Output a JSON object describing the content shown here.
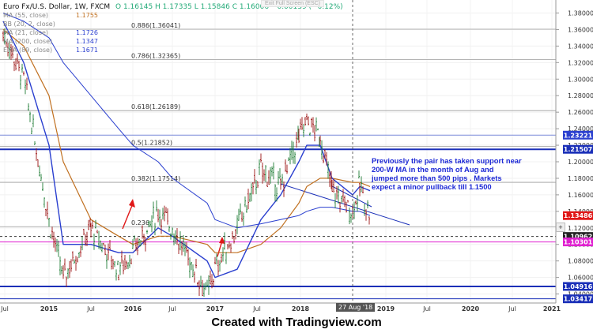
{
  "header": {
    "symbol": "Euro Fx/U.S. Dollar, 1W, FXCM",
    "ohlc": "O 1.16145  H 1.17335  L 1.15846  C 1.16006  −0.00139 (−0.12%)",
    "exit_fullscreen": "Exit Full Screen (ESC)"
  },
  "legend": [
    {
      "label": "MA (55, close)",
      "value": "1.1755",
      "color": "#c07020"
    },
    {
      "label": "BB (20, 2, close)",
      "value": "",
      "color": "#888888"
    },
    {
      "label": "MA (21, close)",
      "value": "1.1726",
      "color": "#2a3fcf"
    },
    {
      "label": "MA (200, close)",
      "value": "1.1347",
      "color": "#2a3fcf"
    },
    {
      "label": "EMA (89, close)",
      "value": "1.1671",
      "color": "#2a3fcf"
    }
  ],
  "annotation": "Previously the pair has taken support near 200-W MA in the month of Aug and jumped more than 500 pips . Markets expect a minor pullback till 1.1500",
  "footer": "Created with  Tradingview.com",
  "crosshair_date": "27 Aug '18",
  "chart_data": {
    "type": "candlestick",
    "title": "Euro Fx/U.S. Dollar, 1W, FXCM",
    "ylim": [
      1.01,
      1.39
    ],
    "y_ticks": [
      "1.02000",
      "1.04000",
      "1.06000",
      "1.08000",
      "1.10000",
      "1.12000",
      "1.14000",
      "1.16000",
      "1.18000",
      "1.20000",
      "1.22000",
      "1.24000",
      "1.26000",
      "1.28000",
      "1.30000",
      "1.32000",
      "1.34000",
      "1.36000",
      "1.38000"
    ],
    "x_ticks": [
      "Jul",
      "2015",
      "Jul",
      "2016",
      "Jul",
      "2017",
      "Jul",
      "2018",
      "27 Aug '18",
      "2019",
      "Jul",
      "2020",
      "Jul",
      "2021"
    ],
    "fib_levels": [
      {
        "label": "0.886(1.36041)",
        "value": 1.36041
      },
      {
        "label": "0.786(1.32365)",
        "value": 1.32365
      },
      {
        "label": "0.618(1.26189)",
        "value": 1.26189
      },
      {
        "label": "0.5(1.21852)",
        "value": 1.21852
      },
      {
        "label": "0.382(1.17514)",
        "value": 1.17514
      },
      {
        "label": "0.236",
        "value": 1.1215
      }
    ],
    "price_badges": [
      {
        "text": "1.23221",
        "value": 1.23221,
        "bg": "#2a3fcf"
      },
      {
        "text": "1.21507",
        "value": 1.21507,
        "bg": "#1a2fb8"
      },
      {
        "text": "1.13486",
        "value": 1.13486,
        "bg": "#e01818"
      },
      {
        "text": "1.10962",
        "value": 1.10962,
        "bg": "#222222"
      },
      {
        "text": "1.10301",
        "value": 1.10301,
        "bg": "#e020d0"
      },
      {
        "text": "1.04916",
        "value": 1.04916,
        "bg": "#1a2fb8"
      },
      {
        "text": "1.03417",
        "value": 1.03417,
        "bg": "#1a2fb8"
      }
    ],
    "horizontal_lines": [
      {
        "value": 1.23221,
        "color": "#7a8ad8",
        "width": 1
      },
      {
        "value": 1.21507,
        "color": "#1a2fb8",
        "width": 2
      },
      {
        "value": 1.10962,
        "color": "#333333",
        "width": 1,
        "dash": true
      },
      {
        "value": 1.10301,
        "color": "#e020d0",
        "width": 1
      },
      {
        "value": 1.04916,
        "color": "#1a2fb8",
        "width": 2
      },
      {
        "value": 1.03417,
        "color": "#1a2fb8",
        "width": 1
      }
    ],
    "series": [
      {
        "name": "EURUSD",
        "type": "ohlc",
        "x": [
          "Jul 2014",
          "Oct 2014",
          "Jan 2015",
          "Mar 2015",
          "Jul 2015",
          "Nov 2015",
          "Jan 2016",
          "May 2016",
          "Aug 2016",
          "Dec 2016",
          "Jan 2017",
          "May 2017",
          "Aug 2017",
          "Oct 2017",
          "Jan 2018",
          "Feb 2018",
          "Apr 2018",
          "Jun 2018",
          "Aug 2018",
          "Sep 2018",
          "Oct 2018"
        ],
        "values": [
          1.355,
          1.3,
          1.13,
          1.06,
          1.12,
          1.07,
          1.09,
          1.14,
          1.12,
          1.04,
          1.07,
          1.12,
          1.19,
          1.17,
          1.23,
          1.25,
          1.23,
          1.165,
          1.14,
          1.17,
          1.135
        ]
      },
      {
        "name": "MA (55, close)",
        "values": [
          1.36,
          1.34,
          1.28,
          1.2,
          1.13,
          1.11,
          1.1,
          1.11,
          1.11,
          1.1,
          1.09,
          1.09,
          1.1,
          1.12,
          1.15,
          1.17,
          1.18,
          1.18,
          1.175,
          1.175,
          1.17
        ]
      },
      {
        "name": "MA (21, close)",
        "values": [
          1.37,
          1.32,
          1.22,
          1.1,
          1.1,
          1.09,
          1.09,
          1.12,
          1.11,
          1.08,
          1.06,
          1.07,
          1.13,
          1.16,
          1.2,
          1.22,
          1.22,
          1.18,
          1.16,
          1.17,
          1.165
        ]
      },
      {
        "name": "MA (200, close)",
        "values": [
          1.38,
          1.37,
          1.35,
          1.32,
          1.28,
          1.24,
          1.22,
          1.2,
          1.18,
          1.15,
          1.13,
          1.12,
          1.125,
          1.13,
          1.135,
          1.14,
          1.145,
          1.145,
          1.14,
          1.14,
          1.135
        ]
      }
    ]
  }
}
